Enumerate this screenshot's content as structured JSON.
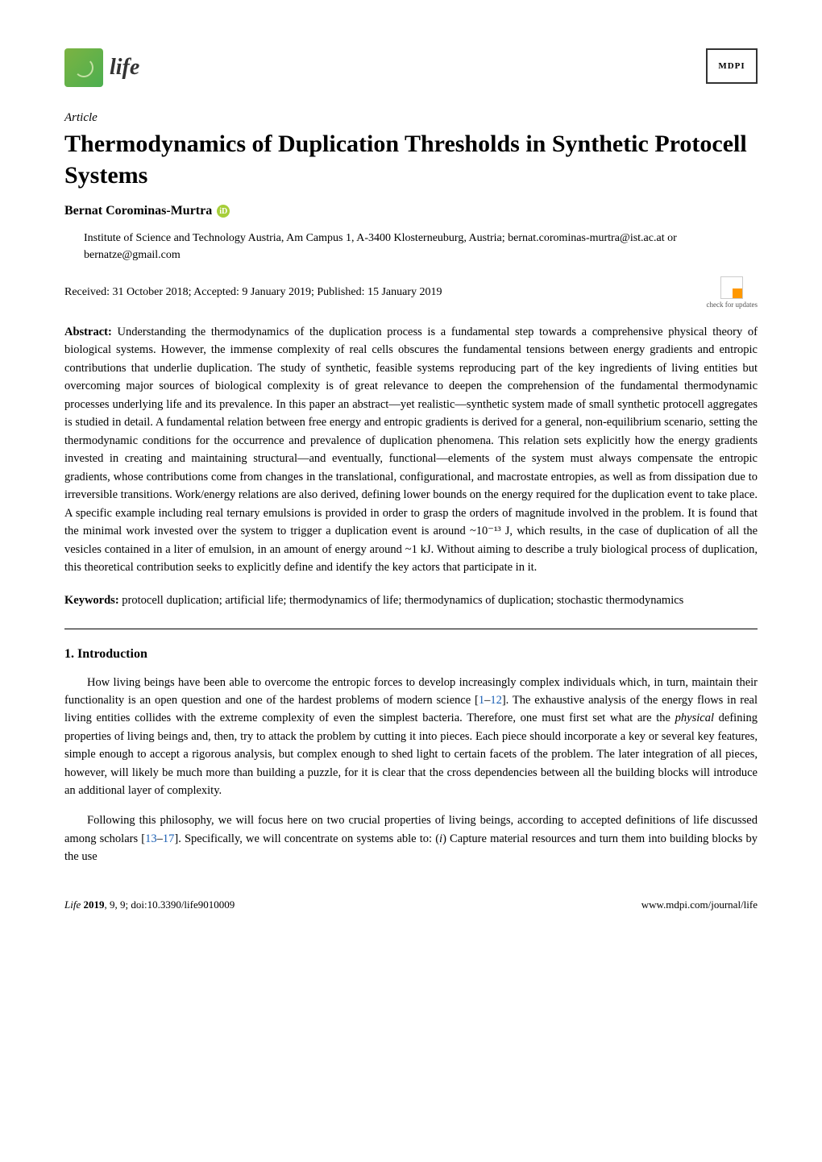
{
  "journal": {
    "logo_text": "life",
    "publisher": "MDPI"
  },
  "article_type": "Article",
  "title": "Thermodynamics of Duplication Thresholds in Synthetic Protocell Systems",
  "author": {
    "name": "Bernat Corominas-Murtra",
    "orcid_present": true
  },
  "affiliation": "Institute of Science and Technology Austria, Am Campus 1, A-3400 Klosterneuburg, Austria; bernat.corominas-murtra@ist.ac.at or bernatze@gmail.com",
  "dates": "Received: 31 October 2018; Accepted: 9 January 2019; Published: 15 January 2019",
  "check_updates_label": "check for updates",
  "abstract_label": "Abstract:",
  "abstract_text": " Understanding the thermodynamics of the duplication process is a fundamental step towards a comprehensive physical theory of biological systems. However, the immense complexity of real cells obscures the fundamental tensions between energy gradients and entropic contributions that underlie duplication. The study of synthetic, feasible systems reproducing part of the key ingredients of living entities but overcoming major sources of biological complexity is of great relevance to deepen the comprehension of the fundamental thermodynamic processes underlying life and its prevalence. In this paper an abstract—yet realistic—synthetic system made of small synthetic protocell aggregates is studied in detail. A fundamental relation between free energy and entropic gradients is derived for a general, non-equilibrium scenario, setting the thermodynamic conditions for the occurrence and prevalence of duplication phenomena. This relation sets explicitly how the energy gradients invested in creating and maintaining structural—and eventually, functional—elements of the system must always compensate the entropic gradients, whose contributions come from changes in the translational, configurational, and macrostate entropies, as well as from dissipation due to irreversible transitions. Work/energy relations are also derived, defining lower bounds on the energy required for the duplication event to take place. A specific example including real ternary emulsions is provided in order to grasp the orders of magnitude involved in the problem. It is found that the minimal work invested over the system to trigger a duplication event is around ~10⁻¹³ J, which results, in the case of duplication of all the vesicles contained in a liter of emulsion, in an amount of energy around ~1 kJ. Without aiming to describe a truly biological process of duplication, this theoretical contribution seeks to explicitly define and identify the key actors that participate in it.",
  "keywords_label": "Keywords:",
  "keywords_text": " protocell duplication; artificial life; thermodynamics of life; thermodynamics of duplication; stochastic thermodynamics",
  "section1": {
    "heading": "1. Introduction",
    "p1_pre": "How living beings have been able to overcome the entropic forces to develop increasingly complex individuals which, in turn, maintain their functionality is an open question and one of the hardest problems of modern science [",
    "p1_ref1": "1",
    "p1_dash": "–",
    "p1_ref2": "12",
    "p1_post": "]. The exhaustive analysis of the energy flows in real living entities collides with the extreme complexity of even the simplest bacteria. Therefore, one must first set what are the ",
    "p1_em": "physical",
    "p1_post2": " defining properties of living beings and, then, try to attack the problem by cutting it into pieces. Each piece should incorporate a key or several key features, simple enough to accept a rigorous analysis, but complex enough to shed light to certain facets of the problem. The later integration of all pieces, however, will likely be much more than building a puzzle, for it is clear that the cross dependencies between all the building blocks will introduce an additional layer of complexity.",
    "p2_pre": "Following this philosophy, we will focus here on two crucial properties of living beings, according to accepted definitions of life discussed among scholars [",
    "p2_ref1": "13",
    "p2_dash": "–",
    "p2_ref2": "17",
    "p2_post": "]. Specifically, we will concentrate on systems able to: (",
    "p2_em": "i",
    "p2_post2": ") Capture material resources and turn them into building blocks by the use"
  },
  "footer": {
    "left_italic": "Life ",
    "left_bold": "2019",
    "left_rest": ", 9, 9; doi:10.3390/life9010009",
    "right": "www.mdpi.com/journal/life"
  },
  "colors": {
    "ref_link": "#1a5fb4",
    "life_icon_bg": "#7cb342",
    "orcid": "#a6ce39"
  }
}
